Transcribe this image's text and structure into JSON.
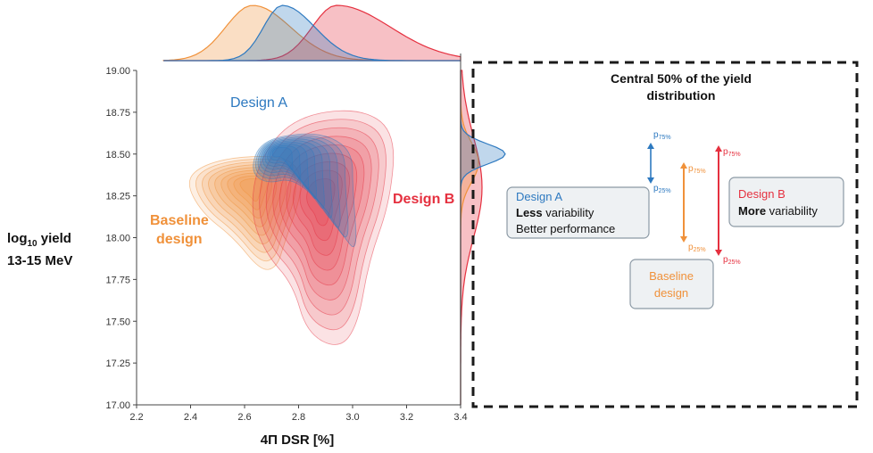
{
  "chart_data": {
    "type": "contour",
    "xlabel": "4Π DSR [%]",
    "ylabel_line1_prefix": "log",
    "ylabel_line1_sub": "10",
    "ylabel_line1_suffix": " yield",
    "ylabel_line2": "13-15 MeV",
    "xlim": [
      2.2,
      3.4
    ],
    "ylim": [
      17.0,
      19.0
    ],
    "x_ticks": [
      "2.2",
      "2.4",
      "2.6",
      "2.8",
      "3.0",
      "3.2",
      "3.4"
    ],
    "y_ticks": [
      "17.00",
      "17.25",
      "17.50",
      "17.75",
      "18.00",
      "18.25",
      "18.50",
      "18.75",
      "19.00"
    ],
    "series": [
      {
        "name": "Baseline design",
        "label_line1": "Baseline",
        "label_line2": "design",
        "color": "#f0913a",
        "peak_x": 2.63,
        "peak_y": 18.32
      },
      {
        "name": "Design A",
        "label_line1": "Design A",
        "color": "#2d79c0",
        "peak_x": 2.72,
        "peak_y": 18.52
      },
      {
        "name": "Design B",
        "label_line1": "Design B",
        "color": "#e5303f",
        "peak_x": 2.88,
        "peak_y": 18.25
      }
    ],
    "grid": false
  },
  "panel": {
    "title_line1": "Central 50% of the yield",
    "title_line2": "distribution",
    "boxes": {
      "design_a": {
        "title": "Design A",
        "line2_bold": "Less",
        "line2_rest": " variability",
        "line3": "Better performance"
      },
      "design_b": {
        "title": "Design B",
        "line2_bold": "More",
        "line2_rest": " variability"
      },
      "baseline": {
        "line1": "Baseline",
        "line2": "design"
      }
    },
    "percentiles": {
      "p_letter": "p",
      "p75": "75%",
      "p25": "25%"
    }
  },
  "colors": {
    "design_a": "#2d79c0",
    "design_b": "#e5303f",
    "baseline": "#f0913a",
    "axis": "#444444",
    "box_fill": "#eef1f3",
    "box_stroke": "#8c9aa5"
  }
}
